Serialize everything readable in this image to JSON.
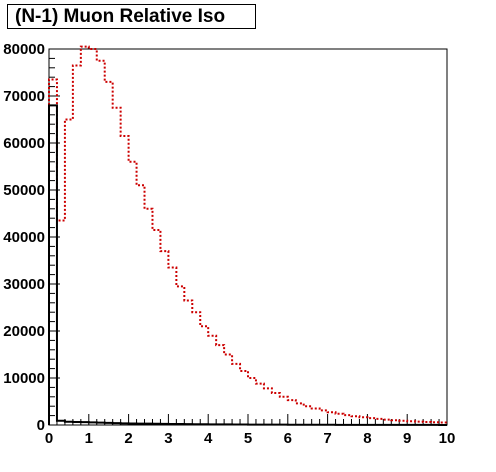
{
  "chart_data": {
    "type": "step-histogram",
    "title": "(N-1) Muon Relative Iso",
    "xlabel": "",
    "ylabel": "",
    "xlim": [
      0,
      10
    ],
    "ylim": [
      0,
      80000
    ],
    "x_ticks": [
      "0",
      "1",
      "2",
      "3",
      "4",
      "5",
      "6",
      "7",
      "8",
      "9",
      "10"
    ],
    "y_ticks": [
      "0",
      "10000",
      "20000",
      "30000",
      "40000",
      "50000",
      "60000",
      "70000",
      "80000"
    ],
    "bin_width": 0.2,
    "series": [
      {
        "color": "#cc0000",
        "style": "dotted",
        "values": [
          73500,
          43500,
          65000,
          76500,
          80500,
          80000,
          77500,
          73000,
          67500,
          61500,
          56000,
          51000,
          46000,
          41500,
          37000,
          33500,
          29500,
          26500,
          24000,
          21000,
          19000,
          17000,
          15000,
          13000,
          11500,
          10000,
          8800,
          7800,
          6800,
          6000,
          5300,
          4600,
          4000,
          3500,
          3100,
          2700,
          2400,
          2100,
          1850,
          1650,
          1450,
          1300,
          1150,
          1000,
          900,
          800,
          720,
          650,
          580,
          520
        ]
      },
      {
        "color": "#000000",
        "style": "solid",
        "values": [
          68000,
          900,
          700,
          650,
          600,
          550,
          500,
          450,
          400,
          350,
          320,
          300,
          280,
          260,
          240,
          220,
          200,
          180,
          160,
          150,
          140,
          130,
          120,
          110,
          100,
          90,
          85,
          80,
          75,
          70,
          65,
          60,
          55,
          50,
          45,
          40,
          38,
          36,
          34,
          32,
          30,
          28,
          26,
          24,
          22,
          20,
          18,
          16,
          14,
          12
        ]
      }
    ]
  }
}
